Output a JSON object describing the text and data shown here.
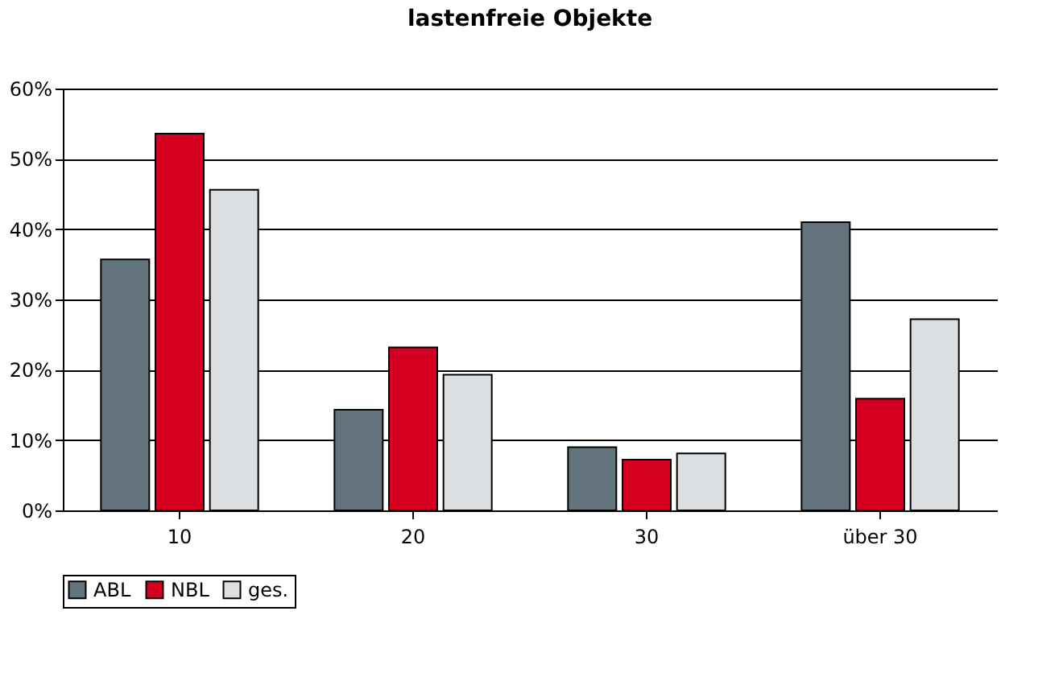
{
  "chart_data": {
    "type": "bar",
    "title": "lastenfreie Objekte",
    "categories": [
      "10",
      "20",
      "30",
      "über 30"
    ],
    "series": [
      {
        "name": "ABL",
        "color": "#64747c",
        "values": [
          35.7,
          14.3,
          9.0,
          41.0
        ]
      },
      {
        "name": "NBL",
        "color": "#d50020",
        "values": [
          53.6,
          23.2,
          7.2,
          15.9
        ]
      },
      {
        "name": "ges.",
        "color": "#dcdfe2",
        "values": [
          45.6,
          19.3,
          8.1,
          27.2
        ]
      }
    ],
    "ylim": [
      0,
      60
    ],
    "yticks": [
      {
        "value": 0,
        "label": "0%"
      },
      {
        "value": 10,
        "label": "10%"
      },
      {
        "value": 20,
        "label": "20%"
      },
      {
        "value": 30,
        "label": "30%"
      },
      {
        "value": 40,
        "label": "40%"
      },
      {
        "value": 50,
        "label": "50%"
      },
      {
        "value": 60,
        "label": "60%"
      }
    ],
    "grid": "y",
    "legend": "bottom"
  }
}
